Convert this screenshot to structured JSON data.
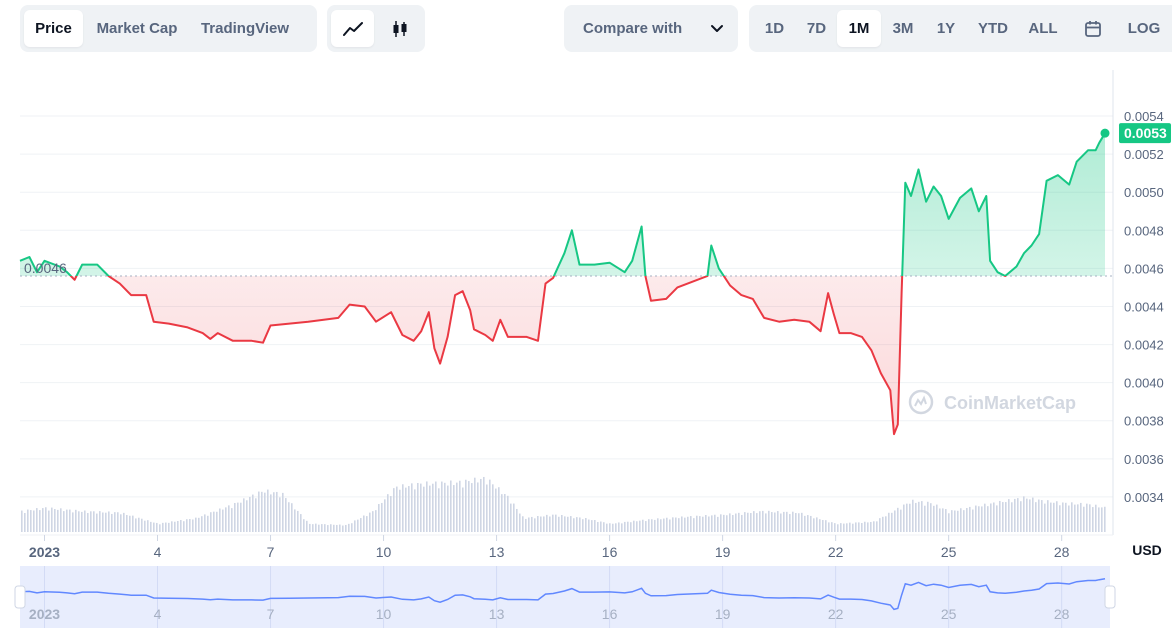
{
  "toolbar": {
    "view_tabs": [
      "Price",
      "Market Cap",
      "TradingView"
    ],
    "active_view_tab": "Price",
    "chart_style_icons": [
      "line-chart-icon",
      "candlestick-icon"
    ],
    "compare_label": "Compare with",
    "ranges": [
      "1D",
      "7D",
      "1M",
      "3M",
      "1Y",
      "YTD",
      "ALL"
    ],
    "active_range": "1M",
    "calendar_icon": "calendar-icon",
    "log_label": "LOG"
  },
  "watermark": "CoinMarketCap",
  "colors": {
    "up": "#16c784",
    "down": "#ea3943",
    "volume": "#cfd6e4",
    "navigator_line": "#6188ff",
    "navigator_fill": "#e8edfd",
    "grid": "#eff2f5"
  },
  "chart_data": {
    "type": "line",
    "baseline_label": "0.0046",
    "baseline_value": 0.00456,
    "current_price_label": "0.0053",
    "y_axis_unit": "USD",
    "ylim": [
      0.0032,
      0.0055
    ],
    "y_ticks": [
      "0.0034",
      "0.0036",
      "0.0038",
      "0.0040",
      "0.0042",
      "0.0044",
      "0.0046",
      "0.0048",
      "0.0050",
      "0.0052",
      "0.0054"
    ],
    "x_tick_labels": [
      "2023",
      "4",
      "7",
      "10",
      "13",
      "16",
      "19",
      "22",
      "25",
      "28"
    ],
    "x_tick_days": [
      1,
      4,
      7,
      10,
      13,
      16,
      19,
      22,
      25,
      28
    ],
    "xlim_days": [
      0.35,
      29.15
    ],
    "grid": true,
    "series": [
      {
        "name": "",
        "points": [
          [
            0.35,
            0.00464
          ],
          [
            0.6,
            0.00466
          ],
          [
            0.8,
            0.00458
          ],
          [
            1.0,
            0.00464
          ],
          [
            1.4,
            0.00461
          ],
          [
            1.6,
            0.00458
          ],
          [
            1.8,
            0.00454
          ],
          [
            2.0,
            0.00462
          ],
          [
            2.4,
            0.00462
          ],
          [
            2.7,
            0.00456
          ],
          [
            3.0,
            0.00452
          ],
          [
            3.3,
            0.00446
          ],
          [
            3.7,
            0.00446
          ],
          [
            3.9,
            0.00432
          ],
          [
            4.3,
            0.00431
          ],
          [
            4.8,
            0.00429
          ],
          [
            5.2,
            0.00426
          ],
          [
            5.4,
            0.00423
          ],
          [
            5.6,
            0.00426
          ],
          [
            6.0,
            0.00422
          ],
          [
            6.5,
            0.00422
          ],
          [
            6.8,
            0.00421
          ],
          [
            7.0,
            0.0043
          ],
          [
            7.5,
            0.00431
          ],
          [
            8.0,
            0.00432
          ],
          [
            8.8,
            0.00434
          ],
          [
            9.1,
            0.00441
          ],
          [
            9.5,
            0.0044
          ],
          [
            9.8,
            0.00432
          ],
          [
            10.2,
            0.00437
          ],
          [
            10.5,
            0.00425
          ],
          [
            10.8,
            0.00422
          ],
          [
            11.0,
            0.00427
          ],
          [
            11.2,
            0.00437
          ],
          [
            11.35,
            0.00418
          ],
          [
            11.5,
            0.0041
          ],
          [
            11.7,
            0.00424
          ],
          [
            11.9,
            0.00446
          ],
          [
            12.1,
            0.00448
          ],
          [
            12.3,
            0.00438
          ],
          [
            12.4,
            0.00428
          ],
          [
            12.7,
            0.00425
          ],
          [
            12.9,
            0.00422
          ],
          [
            13.1,
            0.00433
          ],
          [
            13.3,
            0.00424
          ],
          [
            13.8,
            0.00424
          ],
          [
            14.1,
            0.00422
          ],
          [
            14.3,
            0.00452
          ],
          [
            14.5,
            0.00455
          ],
          [
            14.8,
            0.00468
          ],
          [
            15.0,
            0.0048
          ],
          [
            15.2,
            0.00462
          ],
          [
            15.6,
            0.00462
          ],
          [
            16.0,
            0.00463
          ],
          [
            16.4,
            0.00458
          ],
          [
            16.6,
            0.00464
          ],
          [
            16.85,
            0.00482
          ],
          [
            16.95,
            0.00456
          ],
          [
            17.1,
            0.00443
          ],
          [
            17.5,
            0.00444
          ],
          [
            17.8,
            0.0045
          ],
          [
            18.2,
            0.00453
          ],
          [
            18.6,
            0.00456
          ],
          [
            18.7,
            0.00472
          ],
          [
            18.9,
            0.0046
          ],
          [
            19.2,
            0.00451
          ],
          [
            19.5,
            0.00446
          ],
          [
            19.8,
            0.00444
          ],
          [
            20.1,
            0.00434
          ],
          [
            20.5,
            0.00432
          ],
          [
            20.9,
            0.00433
          ],
          [
            21.3,
            0.00432
          ],
          [
            21.6,
            0.00427
          ],
          [
            21.8,
            0.00447
          ],
          [
            21.95,
            0.00436
          ],
          [
            22.1,
            0.00426
          ],
          [
            22.4,
            0.00426
          ],
          [
            22.7,
            0.00424
          ],
          [
            22.95,
            0.00417
          ],
          [
            23.2,
            0.00405
          ],
          [
            23.45,
            0.00396
          ],
          [
            23.55,
            0.00373
          ],
          [
            23.65,
            0.00378
          ],
          [
            23.75,
            0.00447
          ],
          [
            23.85,
            0.00505
          ],
          [
            24.0,
            0.00498
          ],
          [
            24.2,
            0.00512
          ],
          [
            24.4,
            0.00495
          ],
          [
            24.6,
            0.00503
          ],
          [
            24.8,
            0.00498
          ],
          [
            25.0,
            0.00486
          ],
          [
            25.3,
            0.00497
          ],
          [
            25.6,
            0.00502
          ],
          [
            25.8,
            0.0049
          ],
          [
            26.0,
            0.00498
          ],
          [
            26.1,
            0.00464
          ],
          [
            26.3,
            0.00458
          ],
          [
            26.5,
            0.00456
          ],
          [
            26.8,
            0.00461
          ],
          [
            27.0,
            0.00468
          ],
          [
            27.2,
            0.00472
          ],
          [
            27.4,
            0.00478
          ],
          [
            27.6,
            0.00506
          ],
          [
            27.9,
            0.00509
          ],
          [
            28.2,
            0.00504
          ],
          [
            28.4,
            0.00516
          ],
          [
            28.7,
            0.00522
          ],
          [
            28.9,
            0.00522
          ],
          [
            29.0,
            0.00526
          ],
          [
            29.15,
            0.00531
          ]
        ]
      }
    ],
    "volume": {
      "note": "relative",
      "points": [
        [
          0.35,
          0.3
        ],
        [
          1,
          0.35
        ],
        [
          2,
          0.3
        ],
        [
          3,
          0.28
        ],
        [
          4,
          0.12
        ],
        [
          5,
          0.2
        ],
        [
          6,
          0.4
        ],
        [
          6.8,
          0.6
        ],
        [
          7.3,
          0.55
        ],
        [
          8,
          0.12
        ],
        [
          9,
          0.1
        ],
        [
          9.7,
          0.3
        ],
        [
          10.3,
          0.65
        ],
        [
          11,
          0.7
        ],
        [
          12,
          0.72
        ],
        [
          12.7,
          0.78
        ],
        [
          13.3,
          0.5
        ],
        [
          13.7,
          0.2
        ],
        [
          14.5,
          0.25
        ],
        [
          15.3,
          0.2
        ],
        [
          16,
          0.12
        ],
        [
          17,
          0.18
        ],
        [
          18,
          0.22
        ],
        [
          19,
          0.25
        ],
        [
          20,
          0.3
        ],
        [
          21,
          0.28
        ],
        [
          22,
          0.12
        ],
        [
          23,
          0.15
        ],
        [
          23.5,
          0.3
        ],
        [
          24,
          0.45
        ],
        [
          24.5,
          0.42
        ],
        [
          25,
          0.3
        ],
        [
          26,
          0.4
        ],
        [
          27,
          0.5
        ],
        [
          27.5,
          0.45
        ],
        [
          28,
          0.42
        ],
        [
          28.7,
          0.4
        ],
        [
          29.15,
          0.35
        ]
      ]
    }
  }
}
